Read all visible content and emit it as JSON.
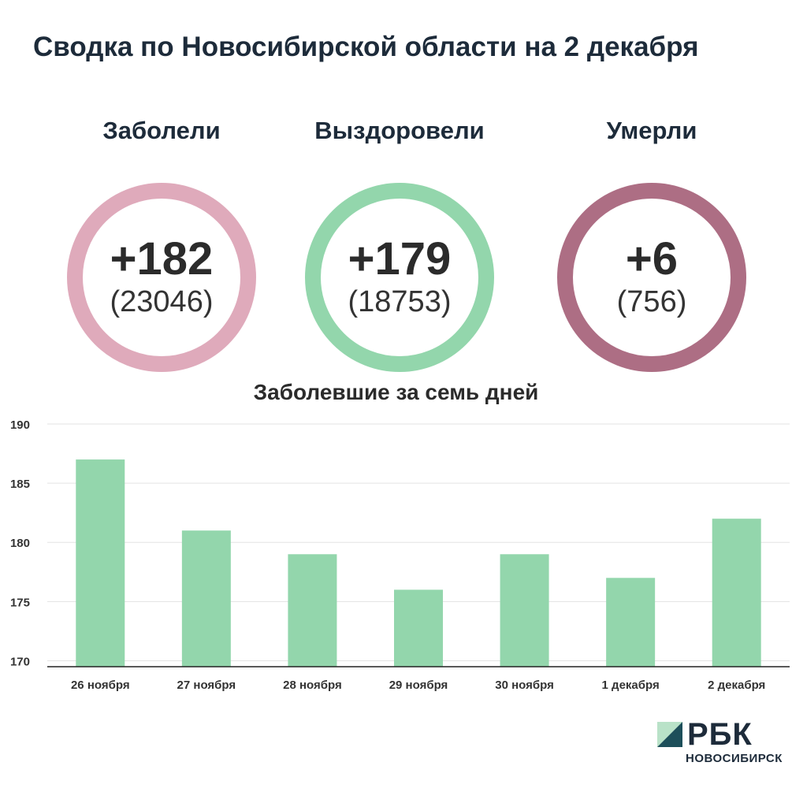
{
  "title": "Сводка по Новосибирской области на 2 декабря",
  "stats": [
    {
      "label": "Заболели",
      "delta": "+182",
      "total": "(23046)",
      "color": "#dfaabb"
    },
    {
      "label": "Выздоровели",
      "delta": "+179",
      "total": "(18753)",
      "color": "#93d6ac"
    },
    {
      "label": "Умерли",
      "delta": "+6",
      "total": "(756)",
      "color": "#ad6e84"
    }
  ],
  "chart_data": {
    "type": "bar",
    "title": "Заболевшие за семь дней",
    "categories": [
      "26 ноября",
      "27 ноября",
      "28 ноября",
      "29 ноября",
      "30 ноября",
      "1 декабря",
      "2 декабря"
    ],
    "values": [
      187,
      181,
      179,
      176,
      179,
      177,
      182
    ],
    "ylim": [
      169.5,
      190
    ],
    "yticks": [
      170,
      175,
      180,
      185,
      190
    ],
    "grid": true,
    "bar_color": "#93d6ac"
  },
  "logo": {
    "main": "РБК",
    "sub": "НОВОСИБИРСК",
    "color_light": "#b9e2c8",
    "color_dark": "#1d4f5a"
  }
}
